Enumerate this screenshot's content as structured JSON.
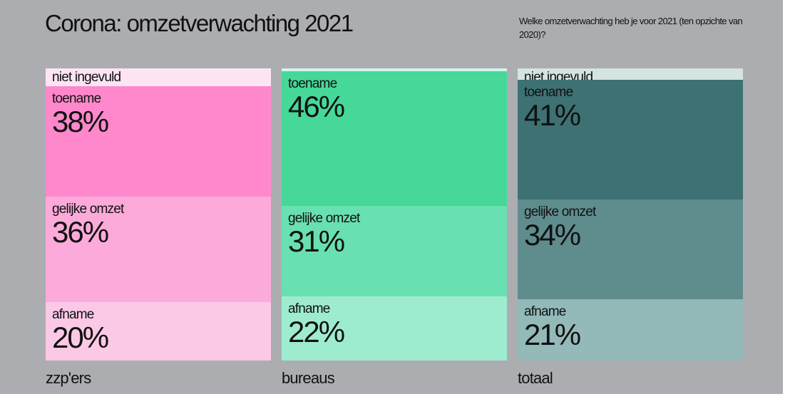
{
  "title": "Corona: omzetverwachting 2021",
  "question": "Welke omzetverwachting heb je voor 2021 (ten opzichte van 2020)?",
  "chart_data": {
    "type": "bar",
    "stacked": true,
    "title": "Corona: omzetverwachting 2021",
    "subtitle": "Welke omzetverwachting heb je voor 2021 (ten opzichte van 2020)?",
    "categories": [
      "zzp'ers",
      "bureaus",
      "totaal"
    ],
    "series": [
      {
        "name": "niet ingevuld",
        "values": [
          6,
          1,
          4
        ]
      },
      {
        "name": "toename",
        "values": [
          38,
          46,
          41
        ]
      },
      {
        "name": "gelijke omzet",
        "values": [
          36,
          31,
          34
        ]
      },
      {
        "name": "afname",
        "values": [
          20,
          22,
          21
        ]
      }
    ],
    "colors": [
      [
        "#fde4f2",
        "#ff88cc",
        "#fcaad9",
        "#fbc8e5"
      ],
      [
        "#d2f6e8",
        "#45d898",
        "#68e0b1",
        "#9eecd0"
      ],
      [
        "#d4e4e3",
        "#3d7174",
        "#5f8d8e",
        "#93b9b8"
      ]
    ],
    "ylim": [
      0,
      100
    ],
    "xlabel": "",
    "ylabel": ""
  }
}
